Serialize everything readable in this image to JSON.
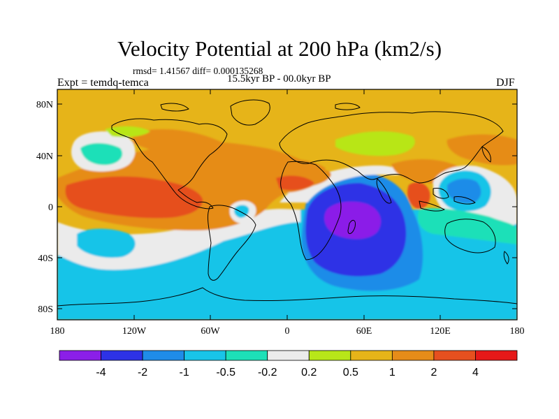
{
  "title": "Velocity Potential at 200 hPa (km2/s)",
  "stats": "rmsd= 1.41567 diff= 0.000135268",
  "period": "15.5kyr BP - 00.0kyr BP",
  "experiment": "Expt = temdq-temca",
  "season": "DJF",
  "y_ticks": [
    "80N",
    "40N",
    "0",
    "40S",
    "80S"
  ],
  "x_ticks": [
    "180",
    "120W",
    "60W",
    "0",
    "60E",
    "120E",
    "180"
  ],
  "colorbar": {
    "labels": [
      "-4",
      "-2",
      "-1",
      "-0.5",
      "-0.2",
      "0.2",
      "0.5",
      "1",
      "2",
      "4"
    ],
    "colors": [
      "#8b1fe8",
      "#2d32e6",
      "#1f8ce8",
      "#19c4e8",
      "#1de0b8",
      "#ebebeb",
      "#b8e619",
      "#e6b419",
      "#e68c19",
      "#e6501f",
      "#e61919"
    ]
  }
}
